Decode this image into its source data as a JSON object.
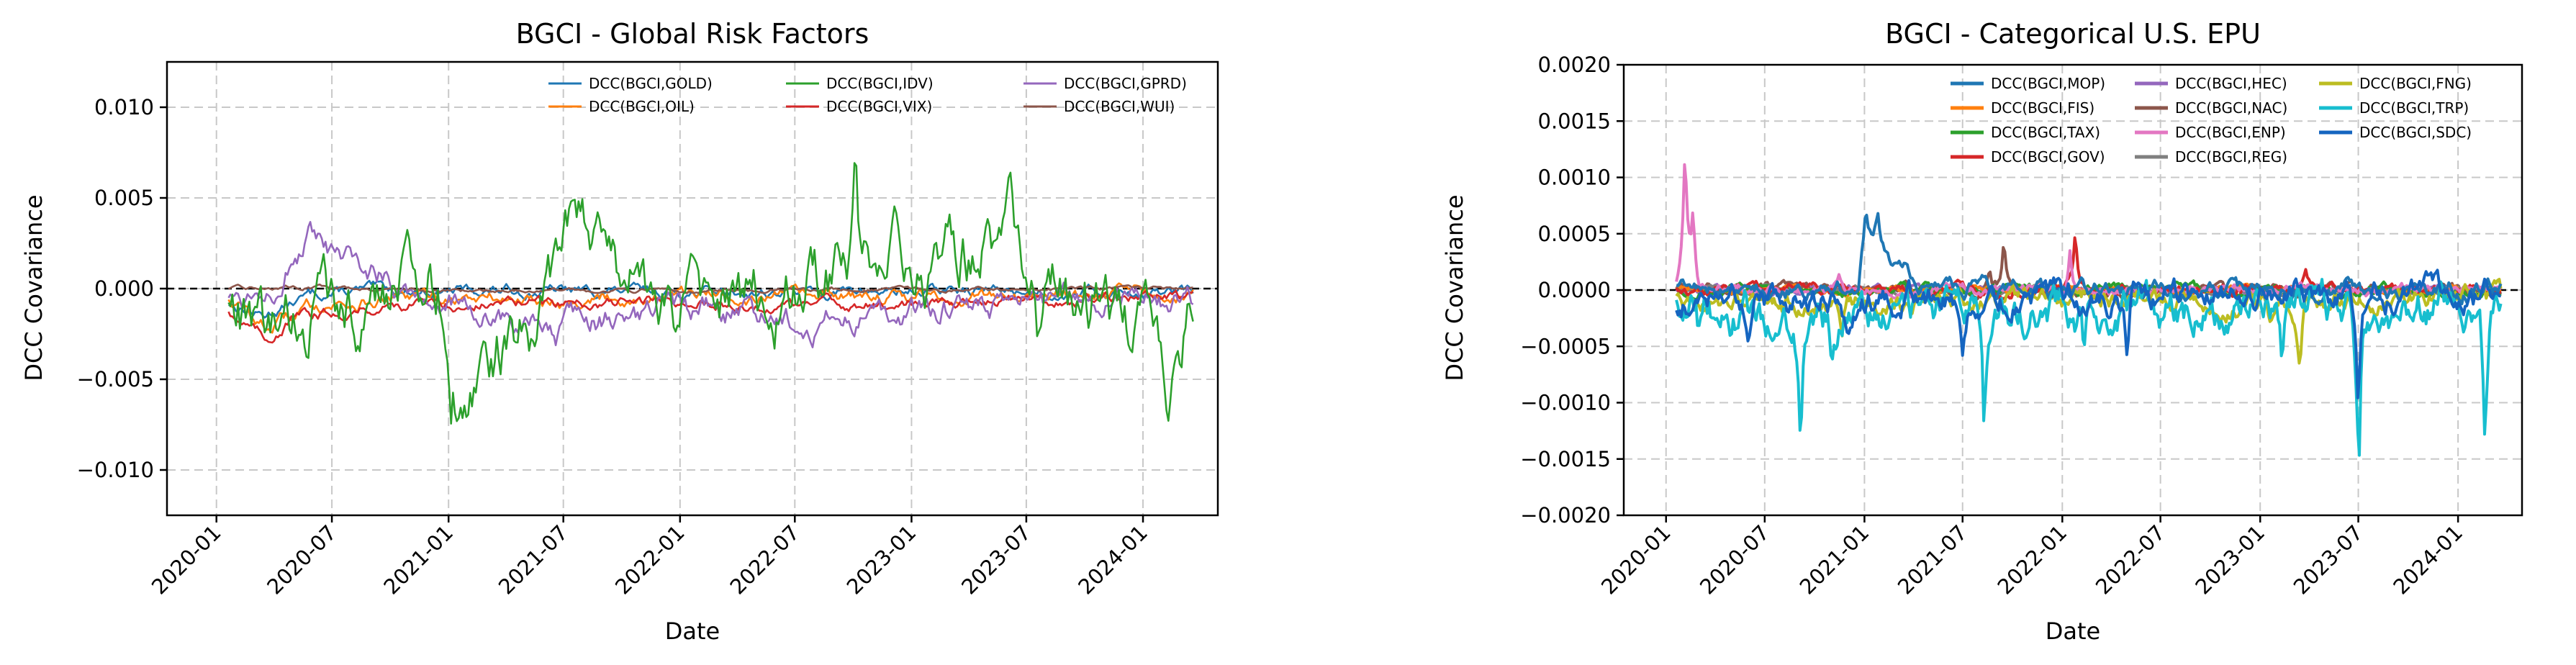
{
  "chart_data": [
    {
      "type": "line",
      "title": "BGCI - Global Risk Factors",
      "xlabel": "Date",
      "ylabel": "DCC Covariance",
      "xlim": [
        "2019-10-15",
        "2024-04-28"
      ],
      "ylim": [
        -0.0125,
        0.0125
      ],
      "x_ticks": [
        "2020-01",
        "2020-07",
        "2021-01",
        "2021-07",
        "2022-01",
        "2022-07",
        "2023-01",
        "2023-07",
        "2024-01"
      ],
      "y_ticks": [
        -0.01,
        -0.005,
        0.0,
        0.005,
        0.01
      ],
      "y_tick_labels": [
        "−0.010",
        "−0.005",
        "0.000",
        "0.005",
        "0.010"
      ],
      "grid": true,
      "legend_position": "top-right",
      "legend_columns": 3,
      "zero_line": true,
      "series": [
        {
          "name": "DCC(BGCI,GOLD)",
          "color": "#1f77b4",
          "amp": 0.0002,
          "base": [
            [
              "2020-01-20",
              -0.0008
            ],
            [
              "2020-03-15",
              -0.0015
            ],
            [
              "2020-06-01",
              -0.0003
            ],
            [
              "2020-09-01",
              -0.0001
            ],
            [
              "2021-03-01",
              -0.0001
            ],
            [
              "2022-06-01",
              -0.0002
            ],
            [
              "2023-06-01",
              -0.0001
            ],
            [
              "2024-03-20",
              -0.0002
            ]
          ]
        },
        {
          "name": "DCC(BGCI,OIL)",
          "color": "#ff7f0e",
          "amp": 0.00025,
          "base": [
            [
              "2020-01-20",
              -0.0005
            ],
            [
              "2020-03-20",
              -0.0022
            ],
            [
              "2020-06-01",
              -0.0009
            ],
            [
              "2020-12-01",
              -0.0005
            ],
            [
              "2021-06-01",
              -0.0006
            ],
            [
              "2022-03-01",
              -0.0004
            ],
            [
              "2023-01-01",
              -0.0005
            ],
            [
              "2023-07-01",
              -0.0003
            ],
            [
              "2024-03-20",
              -0.0004
            ]
          ]
        },
        {
          "name": "DCC(BGCI,VIX)",
          "color": "#d62728",
          "amp": 0.0002,
          "base": [
            [
              "2020-01-20",
              -0.0012
            ],
            [
              "2020-03-20",
              -0.0028
            ],
            [
              "2020-05-01",
              -0.0016
            ],
            [
              "2020-10-01",
              -0.0009
            ],
            [
              "2021-06-01",
              -0.0008
            ],
            [
              "2022-01-01",
              -0.0007
            ],
            [
              "2022-06-01",
              -0.001
            ],
            [
              "2023-01-01",
              -0.0008
            ],
            [
              "2023-06-01",
              -0.0005
            ],
            [
              "2024-03-20",
              -0.0006
            ]
          ]
        },
        {
          "name": "DCC(BGCI,WUI)",
          "color": "#8c564b",
          "amp": 7e-05,
          "base": [
            [
              "2020-01-20",
              0.0
            ],
            [
              "2020-06-01",
              0.0001
            ],
            [
              "2021-01-01",
              -0.0001
            ],
            [
              "2022-01-01",
              -0.0001
            ],
            [
              "2023-01-01",
              -0.0001
            ],
            [
              "2024-03-20",
              0.0
            ]
          ]
        },
        {
          "name": "DCC(BGCI,GPRD)",
          "color": "#9467bd",
          "amp": 0.0005,
          "base": [
            [
              "2020-01-20",
              -0.0004
            ],
            [
              "2020-03-01",
              -0.0002
            ],
            [
              "2020-04-15",
              0.001
            ],
            [
              "2020-05-25",
              0.0026
            ],
            [
              "2020-07-01",
              0.0015
            ],
            [
              "2020-10-15",
              0.0005
            ],
            [
              "2020-12-15",
              -0.0006
            ],
            [
              "2021-03-01",
              -0.0015
            ],
            [
              "2021-06-01",
              -0.0023
            ],
            [
              "2021-08-01",
              -0.0018
            ],
            [
              "2021-11-01",
              -0.0015
            ],
            [
              "2022-03-01",
              -0.0012
            ],
            [
              "2022-08-01",
              -0.0018
            ],
            [
              "2023-01-01",
              -0.0011
            ],
            [
              "2023-05-01",
              -0.0009
            ],
            [
              "2023-08-01",
              -0.0008
            ],
            [
              "2024-03-20",
              -0.0007
            ]
          ],
          "spikes": [
            [
              "2021-06-20",
              -0.0045
            ]
          ]
        },
        {
          "name": "DCC(BGCI,IDV)",
          "color": "#2ca02c",
          "amp": 0.0012,
          "base": [
            [
              "2020-01-20",
              -0.0006
            ],
            [
              "2020-03-20",
              -0.003
            ],
            [
              "2020-06-01",
              -0.0012
            ],
            [
              "2020-09-15",
              -0.0006
            ],
            [
              "2020-11-25",
              0.002
            ],
            [
              "2020-12-25",
              0.0001
            ],
            [
              "2021-01-10",
              -0.006
            ],
            [
              "2021-03-15",
              -0.003
            ],
            [
              "2021-05-15",
              -0.002
            ],
            [
              "2021-06-25",
              0.0005
            ],
            [
              "2021-07-15",
              0.0035
            ],
            [
              "2021-10-01",
              0.0012
            ],
            [
              "2021-12-01",
              -0.001
            ],
            [
              "2022-06-01",
              -0.0006
            ],
            [
              "2022-10-01",
              0.0012
            ],
            [
              "2022-11-01",
              0.0005
            ],
            [
              "2022-12-15",
              0.002
            ],
            [
              "2023-01-20",
              -0.0005
            ],
            [
              "2023-03-01",
              0.0015
            ],
            [
              "2023-05-01",
              0.0025
            ],
            [
              "2023-06-10",
              0.002
            ],
            [
              "2023-06-30",
              -0.001
            ],
            [
              "2023-09-01",
              -0.0008
            ],
            [
              "2023-12-01",
              -0.001
            ],
            [
              "2024-01-20",
              -0.0035
            ],
            [
              "2024-03-20",
              -0.0009
            ]
          ],
          "spikes": [
            [
              "2022-10-05",
              0.0073
            ],
            [
              "2021-01-05",
              -0.0076
            ],
            [
              "2024-02-10",
              -0.006
            ],
            [
              "2023-07-20",
              -0.0052
            ],
            [
              "2023-06-05",
              0.005
            ]
          ]
        }
      ]
    },
    {
      "type": "line",
      "title": "BGCI - Categorical U.S. EPU",
      "xlabel": "Date",
      "ylabel": "DCC Covariance",
      "xlim": [
        "2019-10-15",
        "2024-04-28"
      ],
      "ylim": [
        -0.002,
        0.002
      ],
      "x_ticks": [
        "2020-01",
        "2020-07",
        "2021-01",
        "2021-07",
        "2022-01",
        "2022-07",
        "2023-01",
        "2023-07",
        "2024-01"
      ],
      "y_ticks": [
        -0.002,
        -0.0015,
        -0.001,
        -0.0005,
        0.0,
        0.0005,
        0.001,
        0.0015,
        0.002
      ],
      "y_tick_labels": [
        "−0.0020",
        "−0.0015",
        "−0.0010",
        "−0.0005",
        "0.0000",
        "0.0005",
        "0.0010",
        "0.0015",
        "0.0020"
      ],
      "grid": true,
      "legend_position": "top-right",
      "legend_columns": 3,
      "zero_line": true,
      "series": [
        {
          "name": "DCC(BGCI,HEC)",
          "color": "#9467bd",
          "amp": 2e-05,
          "base": [
            [
              "2020-01-20",
              0.0
            ],
            [
              "2024-03-20",
              0.0
            ]
          ]
        },
        {
          "name": "DCC(BGCI,NAC)",
          "color": "#8c564b",
          "amp": 3e-05,
          "base": [
            [
              "2020-01-20",
              0.0
            ],
            [
              "2024-03-20",
              0.0
            ]
          ],
          "spikes": [
            [
              "2021-09-15",
              0.0005
            ],
            [
              "2021-08-20",
              0.0002
            ]
          ]
        },
        {
          "name": "DCC(BGCI,REG)",
          "color": "#7f7f7f",
          "amp": 2e-05,
          "base": [
            [
              "2020-01-20",
              0.0
            ],
            [
              "2024-03-20",
              0.0
            ]
          ]
        },
        {
          "name": "DCC(BGCI,FIS)",
          "color": "#ff7f0e",
          "amp": 2e-05,
          "base": [
            [
              "2020-01-20",
              0.0
            ],
            [
              "2024-03-20",
              0.0
            ]
          ]
        },
        {
          "name": "DCC(BGCI,TAX)",
          "color": "#2ca02c",
          "amp": 3e-05,
          "base": [
            [
              "2020-01-20",
              0.0
            ],
            [
              "2024-03-20",
              0.0
            ]
          ]
        },
        {
          "name": "DCC(BGCI,GOV)",
          "color": "#d62728",
          "amp": 3e-05,
          "base": [
            [
              "2020-01-20",
              0.0
            ],
            [
              "2024-03-20",
              0.0
            ]
          ],
          "spikes": [
            [
              "2022-01-25",
              0.00055
            ],
            [
              "2023-03-25",
              0.00022
            ]
          ]
        },
        {
          "name": "DCC(BGCI,ENP)",
          "color": "#e377c2",
          "amp": 3e-05,
          "base": [
            [
              "2020-01-20",
              0.0
            ],
            [
              "2024-03-20",
              0.0
            ]
          ],
          "spikes": [
            [
              "2020-02-05",
              0.0013
            ],
            [
              "2020-02-20",
              0.0007
            ],
            [
              "2022-01-15",
              0.0004
            ],
            [
              "2020-11-15",
              0.00015
            ]
          ]
        },
        {
          "name": "DCC(BGCI,FNG)",
          "color": "#bcbd22",
          "amp": 6e-05,
          "base": [
            [
              "2020-01-20",
              -0.0001
            ],
            [
              "2020-06-01",
              -0.00015
            ],
            [
              "2021-01-01",
              -0.0001
            ],
            [
              "2022-01-01",
              -0.0001
            ],
            [
              "2023-01-01",
              -0.0001
            ],
            [
              "2024-03-20",
              -5e-05
            ]
          ],
          "spikes": [
            [
              "2020-11-20",
              -0.0006
            ],
            [
              "2023-03-15",
              -0.0007
            ],
            [
              "2023-01-20",
              -0.0004
            ]
          ]
        },
        {
          "name": "DCC(BGCI,MOP)",
          "color": "#1f77b4",
          "amp": 5e-05,
          "base": [
            [
              "2020-01-20",
              0.0
            ],
            [
              "2020-12-20",
              0.0
            ],
            [
              "2021-01-05",
              0.0005
            ],
            [
              "2021-03-01",
              0.0002
            ],
            [
              "2021-05-01",
              0.0
            ],
            [
              "2024-03-20",
              0.0
            ]
          ],
          "spikes": [
            [
              "2021-01-03",
              0.0007
            ],
            [
              "2021-01-25",
              0.00065
            ]
          ]
        },
        {
          "name": "DCC(BGCI,TRP)",
          "color": "#17becf",
          "amp": 0.00012,
          "base": [
            [
              "2020-01-20",
              -0.0002
            ],
            [
              "2020-06-01",
              -0.00025
            ],
            [
              "2021-01-01",
              -0.0002
            ],
            [
              "2022-01-01",
              -0.0002
            ],
            [
              "2023-01-01",
              -0.0002
            ],
            [
              "2024-03-20",
              -0.0001
            ]
          ],
          "spikes": [
            [
              "2020-09-05",
              -0.00135
            ],
            [
              "2021-08-10",
              -0.0014
            ],
            [
              "2023-07-02",
              -0.00185
            ],
            [
              "2024-02-20",
              -0.00145
            ],
            [
              "2020-03-01",
              -0.0004
            ],
            [
              "2022-02-10",
              -0.0006
            ],
            [
              "2023-02-10",
              -0.0009
            ],
            [
              "2020-11-01",
              -0.0005
            ]
          ]
        },
        {
          "name": "DCC(BGCI,SDC)",
          "color": "#1565c0",
          "amp": 8e-05,
          "base": [
            [
              "2020-01-20",
              -0.0001
            ],
            [
              "2024-03-20",
              -5e-05
            ]
          ],
          "spikes": [
            [
              "2023-07-01",
              -0.0011
            ],
            [
              "2020-12-01",
              -0.0005
            ],
            [
              "2022-05-01",
              -0.0008
            ],
            [
              "2021-07-01",
              -0.0005
            ],
            [
              "2020-06-01",
              -0.0005
            ]
          ]
        }
      ],
      "legend_order": [
        "DCC(BGCI,MOP)",
        "DCC(BGCI,HEC)",
        "DCC(BGCI,FNG)",
        "DCC(BGCI,FIS)",
        "DCC(BGCI,NAC)",
        "DCC(BGCI,TRP)",
        "DCC(BGCI,TAX)",
        "DCC(BGCI,ENP)",
        "DCC(BGCI,SDC)",
        "DCC(BGCI,GOV)",
        "DCC(BGCI,REG)"
      ]
    }
  ]
}
